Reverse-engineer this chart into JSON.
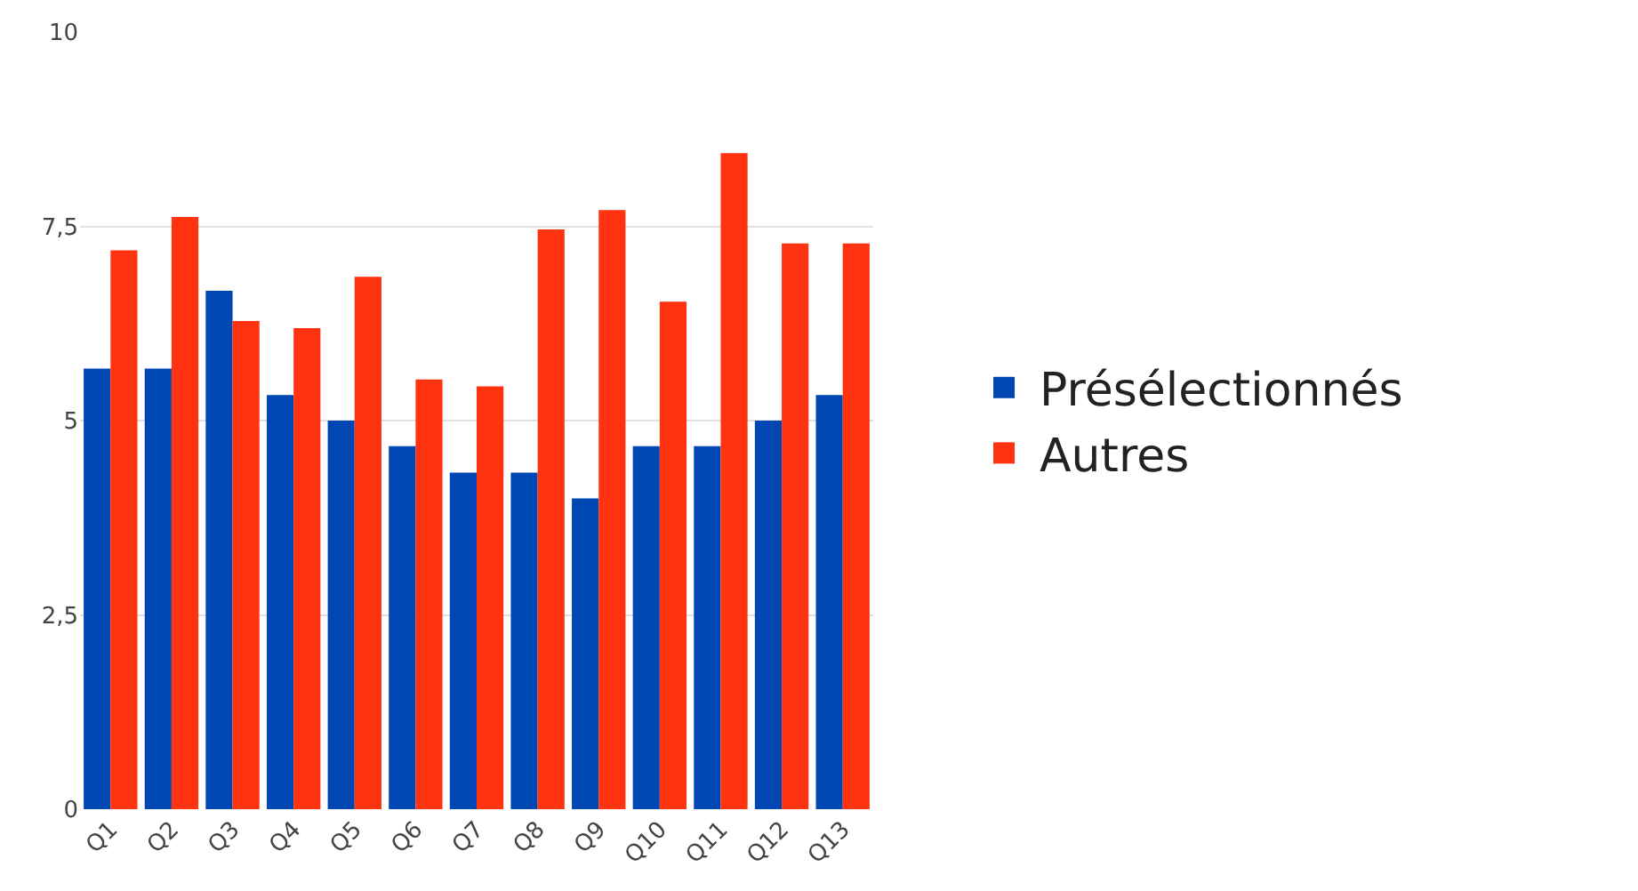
{
  "chart_data": {
    "type": "bar",
    "categories": [
      "Q1",
      "Q2",
      "Q3",
      "Q4",
      "Q5",
      "Q6",
      "Q7",
      "Q8",
      "Q9",
      "Q10",
      "Q11",
      "Q12",
      "Q13"
    ],
    "series": [
      {
        "name": "Présélectionnés",
        "color": "#0047b3",
        "values": [
          5.67,
          5.67,
          6.67,
          5.33,
          5,
          4.67,
          4.33,
          4.33,
          4,
          4.67,
          4.67,
          5,
          5.33
        ]
      },
      {
        "name": "Autres",
        "color": "#ff3310",
        "values": [
          7.19,
          7.62,
          6.28,
          6.19,
          6.85,
          5.53,
          5.44,
          7.46,
          7.71,
          6.53,
          8.44,
          7.28,
          7.28
        ]
      }
    ],
    "ylim": [
      0,
      10
    ],
    "yticks": [
      {
        "value": 0,
        "label": "0"
      },
      {
        "value": 2.5,
        "label": "2,5"
      },
      {
        "value": 5,
        "label": "5"
      },
      {
        "value": 7.5,
        "label": "7,5"
      },
      {
        "value": 10,
        "label": "10"
      }
    ],
    "grid": "y",
    "legend": "right"
  }
}
